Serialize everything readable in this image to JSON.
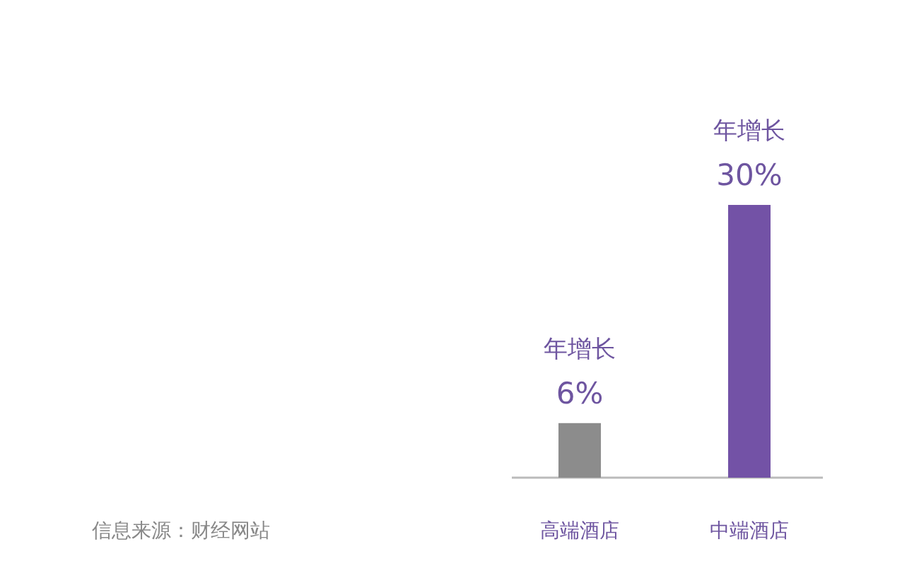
{
  "chart_data": {
    "type": "bar",
    "categories": [
      "高端酒店",
      "中端酒店"
    ],
    "values": [
      6,
      30
    ],
    "colors": [
      "#8c8c8c",
      "#7352a6"
    ],
    "value_labels": [
      "年增长\n6%",
      "年增长\n30%"
    ],
    "annotations": [
      "信息来源：财经网站"
    ]
  }
}
